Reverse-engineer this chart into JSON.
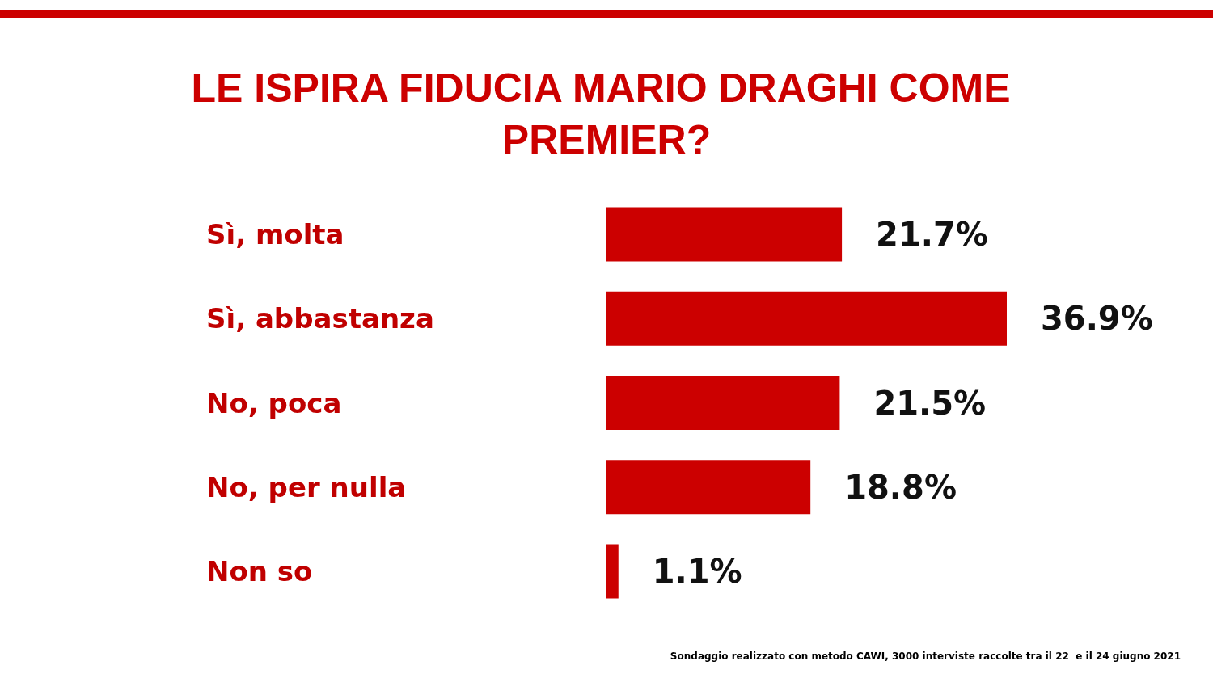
{
  "chart_data": {
    "type": "bar",
    "orientation": "horizontal",
    "title": "LE ISPIRA FIDUCIA MARIO DRAGHI COME PREMIER?",
    "categories": [
      "Sì, molta",
      "Sì, abbastanza",
      "No, poca",
      "No, per nulla",
      "Non so"
    ],
    "values": [
      21.7,
      36.9,
      21.5,
      18.8,
      1.1
    ],
    "value_labels": [
      "21.7%",
      "36.9%",
      "21.5%",
      "18.8%",
      "1.1%"
    ],
    "color": "#cc0000",
    "annotations": [
      "Sondaggio realizzato con metodo CAWI, 3000 interviste raccolte tra il 22  e il 24 giugno 2021"
    ]
  }
}
